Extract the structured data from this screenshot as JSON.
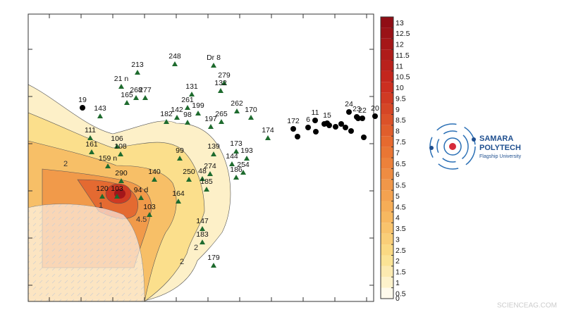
{
  "colorbar": {
    "ticks": [
      0,
      0.5,
      1,
      1.5,
      2,
      2.5,
      3,
      3.5,
      4,
      4.5,
      5,
      5.5,
      6,
      6.5,
      7,
      7.5,
      8,
      8.5,
      9,
      9.5,
      10,
      10.5,
      11,
      11.5,
      12,
      12.5,
      13
    ]
  },
  "contour_labels": [
    "2",
    "4.5",
    "2",
    "1",
    "2"
  ],
  "wells": [
    "248",
    "Dr 8",
    "213",
    "21 n",
    "131",
    "279",
    "132",
    "165",
    "268",
    "277",
    "261",
    "199",
    "262",
    "170",
    "143",
    "19",
    "182",
    "142",
    "98",
    "265",
    "197",
    "111",
    "161",
    "106",
    "108",
    "174",
    "172",
    "6",
    "11",
    "15",
    "24",
    "23",
    "22",
    "20",
    "139",
    "173",
    "193",
    "144",
    "274",
    "254",
    "186",
    "159 n",
    "99",
    "140",
    "250",
    "48",
    "185",
    "290",
    "120",
    "103",
    "94 d",
    "164",
    "103",
    "147",
    "183",
    "179"
  ],
  "logo": {
    "line1": "SAMARA",
    "line2": "POLYTECH",
    "line3": "Flagship University"
  },
  "watermark": "SCIENCEAG.COM"
}
